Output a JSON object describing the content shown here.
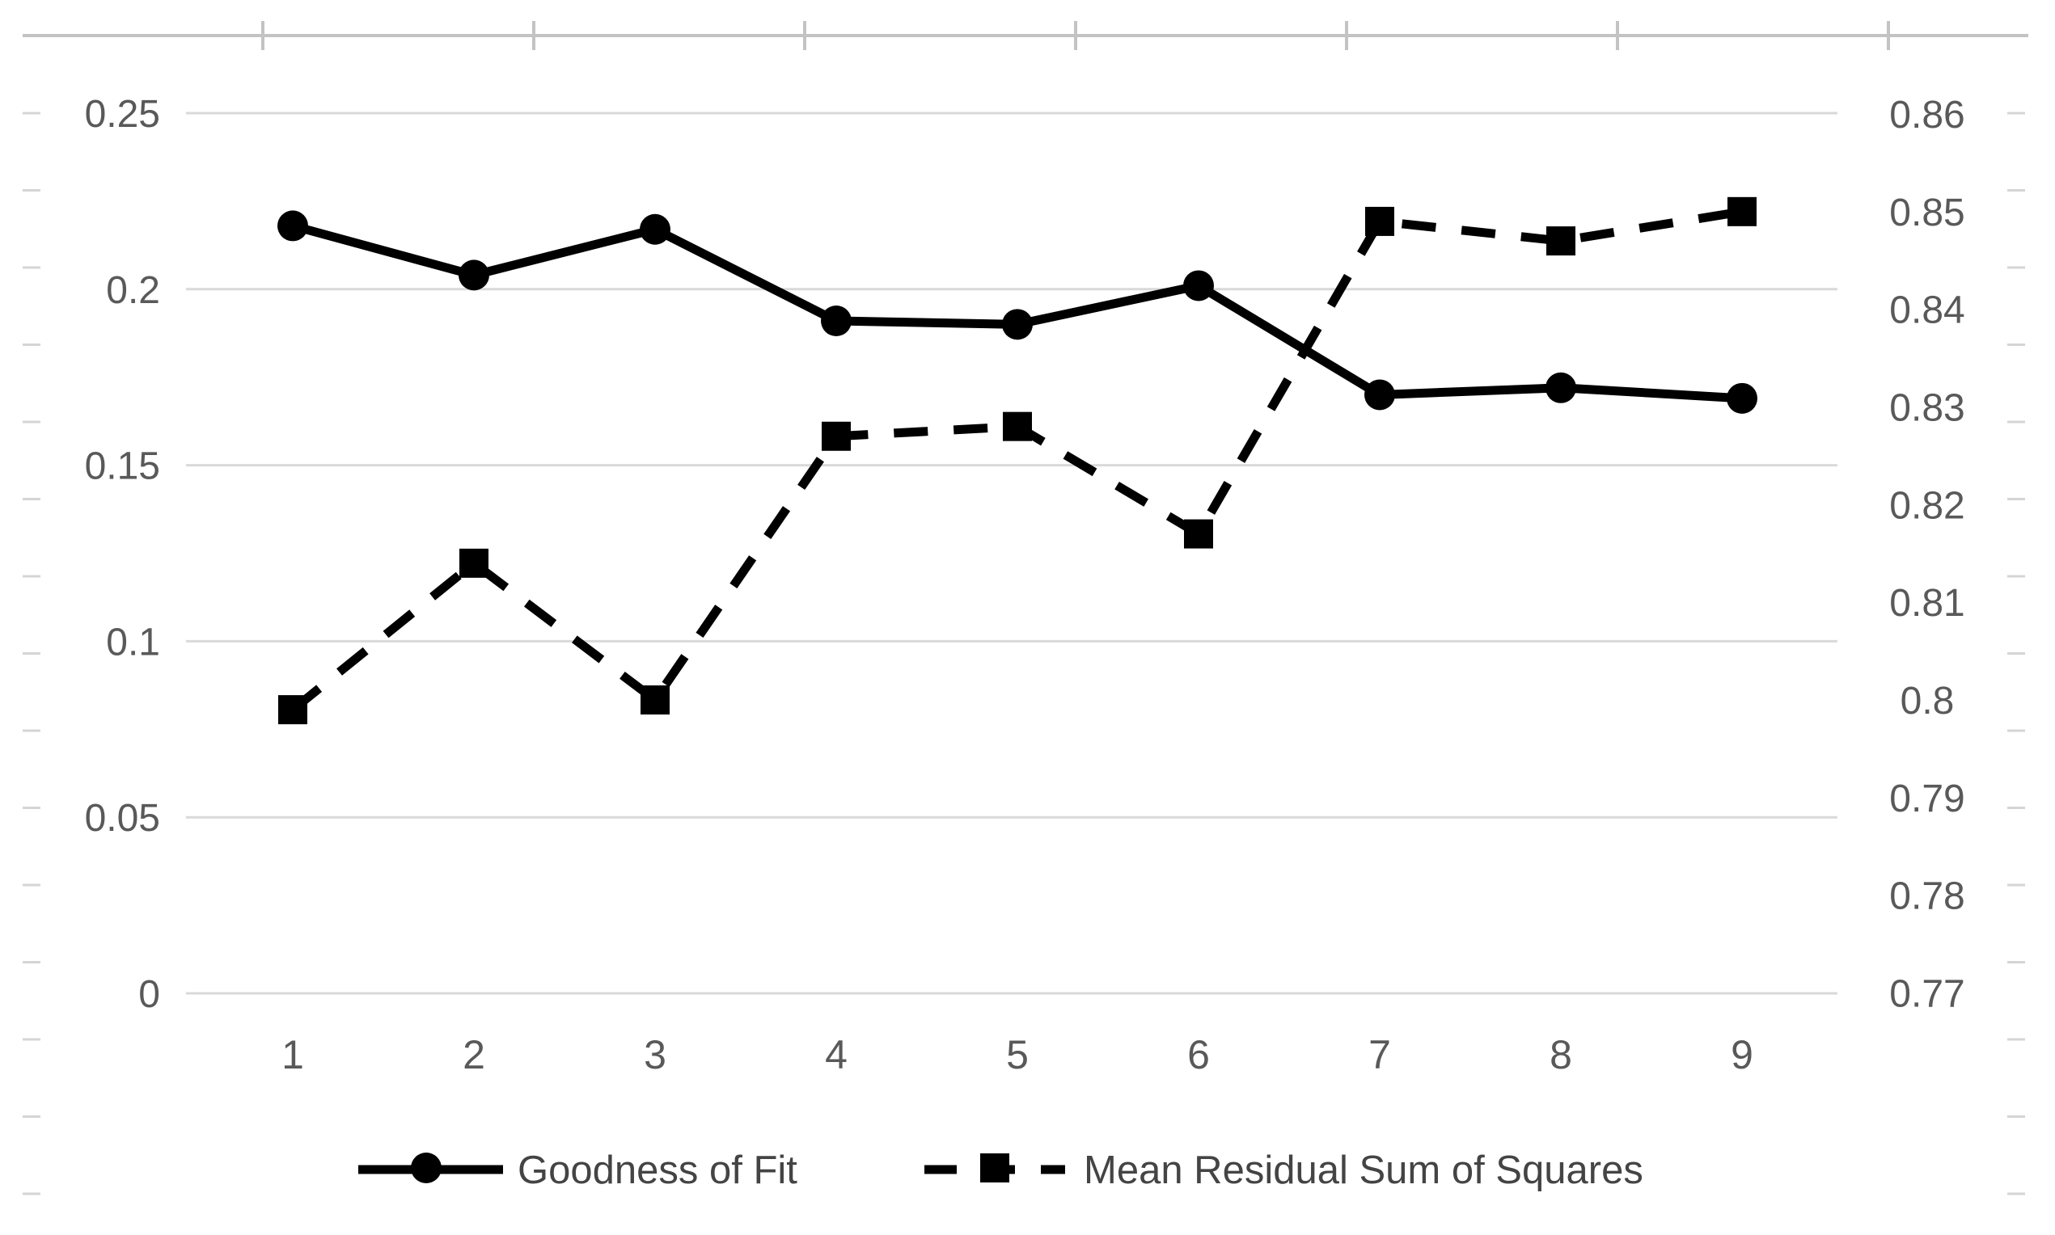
{
  "chart_data": {
    "type": "line",
    "title": "",
    "xlabel": "",
    "ylabel": "",
    "grid": true,
    "legend_position": "bottom",
    "categories": [
      "1",
      "2",
      "3",
      "4",
      "5",
      "6",
      "7",
      "8",
      "9"
    ],
    "series": [
      {
        "name": "Goodness of Fit",
        "axis": "left",
        "line_style": "solid",
        "marker": "circle",
        "values": [
          0.218,
          0.204,
          0.217,
          0.191,
          0.19,
          0.201,
          0.17,
          0.172,
          0.169
        ]
      },
      {
        "name": "Mean Residual Sum of Squares",
        "axis": "right",
        "line_style": "dashed",
        "marker": "square",
        "values": [
          0.799,
          0.814,
          0.8,
          0.827,
          0.828,
          0.817,
          0.849,
          0.847,
          0.85
        ]
      }
    ],
    "left_axis": {
      "tick_labels": [
        "0.25",
        "0.2",
        "0.15",
        "0.1",
        "0.05",
        "0"
      ],
      "tick_values": [
        0.25,
        0.2,
        0.15,
        0.1,
        0.05,
        0
      ],
      "min": 0,
      "max": 0.25
    },
    "right_axis": {
      "tick_labels": [
        "0.86",
        "0.85",
        "0.84",
        "0.83",
        "0.82",
        "0.81",
        "0.8",
        "0.79",
        "0.78",
        "0.77"
      ],
      "tick_values": [
        0.86,
        0.85,
        0.84,
        0.83,
        0.82,
        0.81,
        0.8,
        0.79,
        0.78,
        0.77
      ],
      "min": 0.77,
      "max": 0.86
    },
    "colors": {
      "series_stroke": "#000000",
      "gridline": "#d9d9d9",
      "plot_border": "#c3c3c3",
      "edge_tick": "#d5d5d5",
      "axis_label": "#595959",
      "legend_label": "#444444",
      "background": "#ffffff"
    }
  }
}
